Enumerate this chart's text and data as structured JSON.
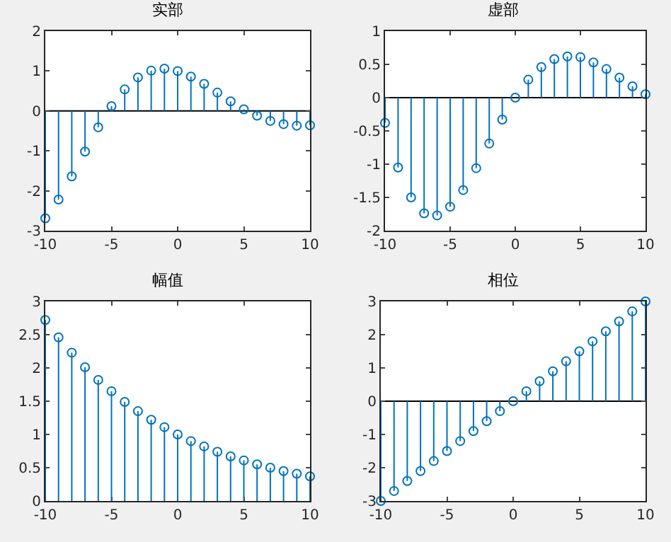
{
  "chart_data": [
    {
      "type": "lollipop",
      "title": "实部",
      "x": [
        -10,
        -9,
        -8,
        -7,
        -6,
        -5,
        -4,
        -3,
        -2,
        -1,
        0,
        1,
        2,
        3,
        4,
        5,
        6,
        7,
        8,
        9,
        10
      ],
      "values": [
        -2.69,
        -2.22,
        -1.64,
        -1.02,
        -0.41,
        0.12,
        0.54,
        0.84,
        1.01,
        1.06,
        1,
        0.86,
        0.68,
        0.46,
        0.24,
        0.04,
        -0.12,
        -0.25,
        -0.33,
        -0.37,
        -0.36
      ],
      "color": "#0072bd",
      "marker": "circle",
      "xlim": [
        -10,
        10
      ],
      "xticks": [
        -10,
        -5,
        0,
        5,
        10
      ],
      "ylim": [
        -3,
        2
      ],
      "yticks": [
        -3,
        -2,
        -1,
        0,
        1,
        2
      ],
      "ref_lines": [
        {
          "axis": "y",
          "value": 0,
          "color": "#000000"
        }
      ]
    },
    {
      "type": "lollipop",
      "title": "虚部",
      "x": [
        -10,
        -9,
        -8,
        -7,
        -6,
        -5,
        -4,
        -3,
        -2,
        -1,
        0,
        1,
        2,
        3,
        4,
        5,
        6,
        7,
        8,
        9,
        10
      ],
      "values": [
        -0.38,
        -1.05,
        -1.5,
        -1.74,
        -1.77,
        -1.64,
        -1.39,
        -1.06,
        -0.69,
        -0.33,
        0,
        0.27,
        0.46,
        0.58,
        0.62,
        0.61,
        0.53,
        0.43,
        0.3,
        0.17,
        0.05
      ],
      "color": "#0072bd",
      "marker": "circle",
      "xlim": [
        -10,
        10
      ],
      "xticks": [
        -10,
        -5,
        0,
        5,
        10
      ],
      "ylim": [
        -2,
        1
      ],
      "yticks": [
        -2,
        -1.5,
        -1,
        -0.5,
        0,
        0.5,
        1
      ],
      "ref_lines": [
        {
          "axis": "y",
          "value": 0,
          "color": "#000000"
        }
      ]
    },
    {
      "type": "lollipop",
      "title": "幅值",
      "x": [
        -10,
        -9,
        -8,
        -7,
        -6,
        -5,
        -4,
        -3,
        -2,
        -1,
        0,
        1,
        2,
        3,
        4,
        5,
        6,
        7,
        8,
        9,
        10
      ],
      "values": [
        2.72,
        2.46,
        2.23,
        2.01,
        1.82,
        1.65,
        1.49,
        1.35,
        1.22,
        1.11,
        1,
        0.9,
        0.82,
        0.74,
        0.67,
        0.61,
        0.55,
        0.5,
        0.45,
        0.41,
        0.37
      ],
      "color": "#0072bd",
      "marker": "circle",
      "xlim": [
        -10,
        10
      ],
      "xticks": [
        -10,
        -5,
        0,
        5,
        10
      ],
      "ylim": [
        0,
        3
      ],
      "yticks": [
        0,
        0.5,
        1,
        1.5,
        2,
        2.5,
        3
      ]
    },
    {
      "type": "lollipop",
      "title": "相位",
      "x": [
        -10,
        -9,
        -8,
        -7,
        -6,
        -5,
        -4,
        -3,
        -2,
        -1,
        0,
        1,
        2,
        3,
        4,
        5,
        6,
        7,
        8,
        9,
        10
      ],
      "values": [
        -3,
        -2.7,
        -2.4,
        -2.1,
        -1.8,
        -1.5,
        -1.2,
        -0.9,
        -0.6,
        -0.3,
        0,
        0.3,
        0.6,
        0.9,
        1.2,
        1.5,
        1.8,
        2.1,
        2.4,
        2.7,
        3
      ],
      "color": "#0072bd",
      "marker": "circle",
      "xlim": [
        -10,
        10
      ],
      "xticks": [
        -10,
        -5,
        0,
        5,
        10
      ],
      "ylim": [
        -3,
        3
      ],
      "yticks": [
        -3,
        -2,
        -1,
        0,
        1,
        2,
        3
      ],
      "ref_lines": [
        {
          "axis": "y",
          "value": 0,
          "color": "#000000"
        }
      ]
    }
  ]
}
